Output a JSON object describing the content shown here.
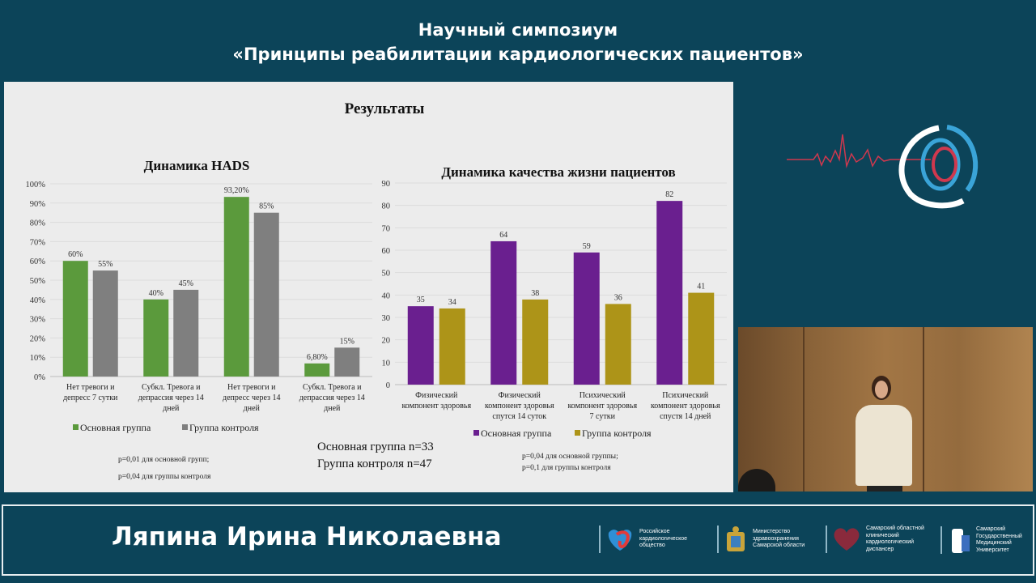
{
  "header": {
    "line1": "Научный симпозиум",
    "line2": "«Принципы реабилитации кардиологических пациентов»"
  },
  "slide": {
    "title": "Результаты",
    "sample_main": "Основная группа n=33",
    "sample_control": "Группа контроля  n=47",
    "p_left_1": "p=0,01 для основной групп;",
    "p_left_2": "p=0,04 для группы контроля",
    "p_right_1": "p=0,04 для основной группы;",
    "p_right_2": "p=0,1 для группы контроля"
  },
  "chart_data": [
    {
      "type": "bar",
      "title": "Динамика HADS",
      "categories": [
        [
          "Нет тревоги и",
          "депресс 7 сутки"
        ],
        [
          "Субкл. Тревога и",
          "депрассия через 14",
          "дней"
        ],
        [
          "Нет тревоги и",
          "депресс через 14",
          "дней"
        ],
        [
          "Субкл. Тревога и",
          "депрассия через 14",
          "дней"
        ]
      ],
      "series": [
        {
          "name": "Основная группа",
          "color": "#5b9a3c",
          "values": [
            60,
            40,
            93.2,
            6.8
          ],
          "labels": [
            "60%",
            "40%",
            "93,20%",
            "6,80%"
          ]
        },
        {
          "name": "Группа контроля",
          "color": "#7f7f7f",
          "values": [
            55,
            45,
            85,
            15
          ],
          "labels": [
            "55%",
            "45%",
            "85%",
            "15%"
          ]
        }
      ],
      "ylim": [
        0,
        100
      ],
      "yticks": [
        "0%",
        "10%",
        "20%",
        "30%",
        "40%",
        "50%",
        "60%",
        "70%",
        "80%",
        "90%",
        "100%"
      ],
      "grid": true,
      "legend": "bottom"
    },
    {
      "type": "bar",
      "title": "Динамика качества жизни пациентов",
      "categories": [
        [
          "Физический",
          "компонент здоровья"
        ],
        [
          "Физический",
          "компонент здоровья",
          "спутся 14 суток"
        ],
        [
          "Психический",
          "компонент здоровья",
          "7 сутки"
        ],
        [
          "Психический",
          "компонент здоровья",
          "спустя 14 дней"
        ]
      ],
      "series": [
        {
          "name": "Основная группа",
          "color": "#6a1f8f",
          "values": [
            35,
            64,
            59,
            82
          ],
          "labels": [
            "35",
            "64",
            "59",
            "82"
          ]
        },
        {
          "name": "Группа контроля",
          "color": "#ad9418",
          "values": [
            34,
            38,
            36,
            41
          ],
          "labels": [
            "34",
            "38",
            "36",
            "41"
          ]
        }
      ],
      "ylim": [
        0,
        90
      ],
      "yticks": [
        "0",
        "10",
        "20",
        "30",
        "40",
        "50",
        "60",
        "70",
        "80",
        "90"
      ],
      "grid": true,
      "legend": "bottom"
    }
  ],
  "footer": {
    "speaker": "Ляпина Ирина Николаевна",
    "orgs": [
      {
        "name": "Российское кардиологическое общество"
      },
      {
        "name": "Министерство здравоохранения Самарской области"
      },
      {
        "name": "Самарский областной клинический кардиологический диспансер"
      },
      {
        "name": "Самарский Государственный Медицинский Университет"
      }
    ]
  }
}
